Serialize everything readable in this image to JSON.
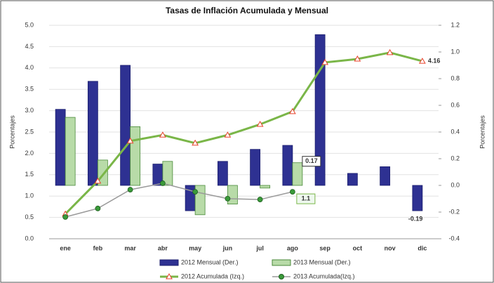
{
  "chart_data": {
    "type": "bar",
    "title": "Tasas de Inflación Acumulada y Mensual",
    "y_label": "Porcentajes",
    "y2_label": "Porcentajes",
    "categories": [
      "ene",
      "feb",
      "mar",
      "abr",
      "may",
      "jun",
      "jul",
      "ago",
      "sep",
      "oct",
      "nov",
      "dic"
    ],
    "ylim": [
      0,
      5
    ],
    "yticks": [
      {
        "value": 0,
        "label": "0.0"
      },
      0.5,
      {
        "value": 1,
        "label": "1.0"
      },
      1.5,
      {
        "value": 2,
        "label": "2.0"
      },
      2.5,
      {
        "value": 3,
        "label": "3.0"
      },
      3.5,
      {
        "value": 4,
        "label": "4.0"
      },
      4.5,
      {
        "value": 5,
        "label": "5.0"
      }
    ],
    "y2lim": [
      -0.4,
      1.2
    ],
    "y2ticks": [
      -0.4,
      -0.2,
      {
        "value": 0,
        "label": "0.0"
      },
      0.2,
      0.4,
      0.6,
      0.8,
      {
        "value": 1,
        "label": "1.0"
      },
      1.2
    ],
    "grid": true,
    "legend": "bottom",
    "series": [
      {
        "name": "2012 Mensual (Der.)",
        "type": "bar",
        "axis": "y2",
        "color": "#2e3192",
        "values": [
          0.57,
          0.78,
          0.9,
          0.16,
          -0.19,
          0.18,
          0.27,
          0.3,
          1.13,
          0.09,
          0.14,
          -0.19
        ]
      },
      {
        "name": "2013 Mensual (Der.)",
        "type": "bar",
        "axis": "y2",
        "color": "#b8dba8",
        "values": [
          0.51,
          0.19,
          0.44,
          0.18,
          -0.22,
          -0.14,
          -0.02,
          0.17,
          null,
          null,
          null,
          null
        ]
      },
      {
        "name": "2012 Acumulada (Izq.)",
        "type": "line",
        "color": "#7ab648",
        "values": [
          0.58,
          1.35,
          2.29,
          2.43,
          2.24,
          2.43,
          2.68,
          2.98,
          4.13,
          4.21,
          4.36,
          4.16
        ]
      },
      {
        "name": "2013 Acumulada(Izq.)",
        "type": "line",
        "color": "#9a9a9a",
        "values": [
          0.51,
          0.71,
          1.15,
          1.3,
          1.1,
          0.94,
          0.92,
          1.1,
          null,
          null,
          null,
          null
        ]
      }
    ]
  }
}
